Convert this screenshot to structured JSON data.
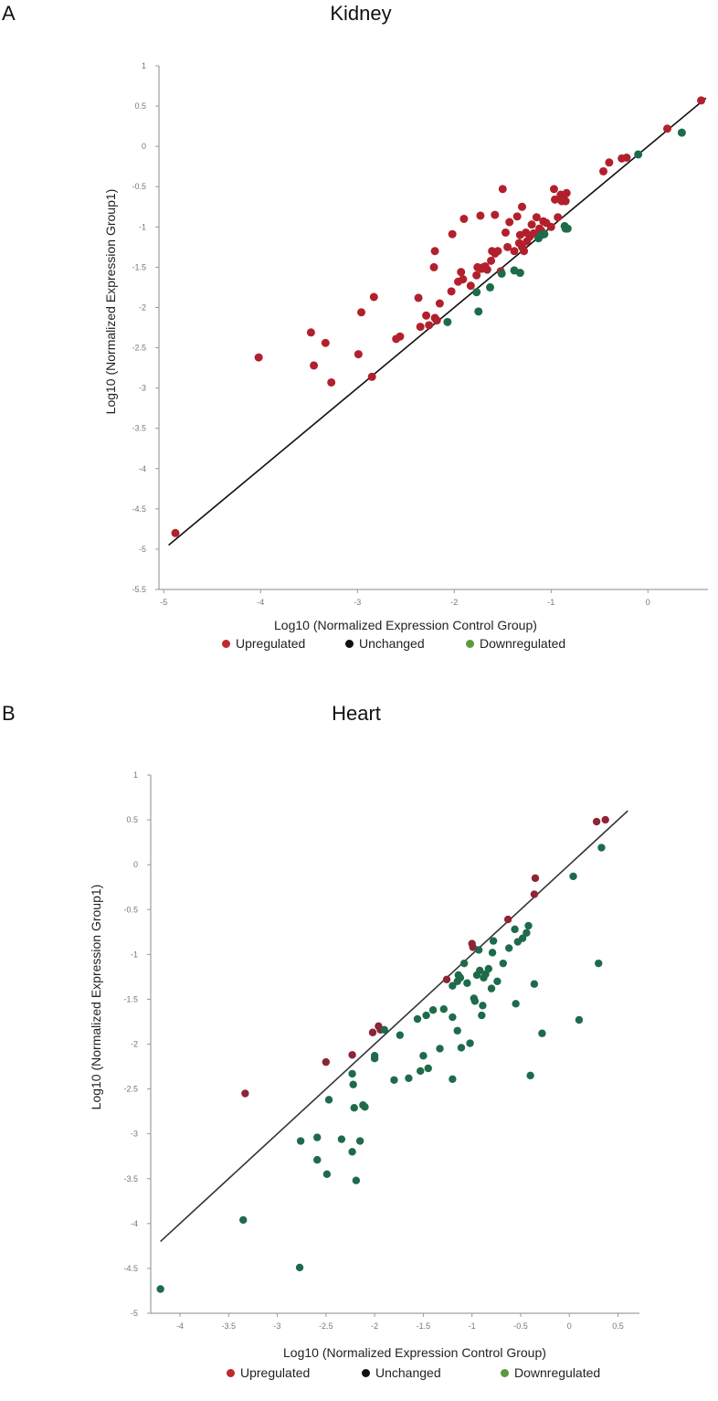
{
  "panels": [
    {
      "letter": "A",
      "title": "Kidney",
      "xlabel": "Log10 (Normalized Expression Control Group)",
      "ylabel": "Log10 (Normalized Expression Group1)"
    },
    {
      "letter": "B",
      "title": "Heart",
      "xlabel": "Log10 (Normalized Expression Control Group)",
      "ylabel": "Log10 (Normalized Expression Group1)"
    }
  ],
  "legend": [
    {
      "label": "Upregulated",
      "color": "#c0282d"
    },
    {
      "label": "Unchanged",
      "color": "#111111"
    },
    {
      "label": "Downregulated",
      "color": "#5a9a3c"
    }
  ],
  "chart_data": [
    {
      "type": "scatter",
      "title": "Kidney",
      "xlabel": "Log10 (Normalized Expression Control Group)",
      "ylabel": "Log10 (Normalized Expression Group1)",
      "xlim": [
        -5.05,
        0.62
      ],
      "ylim": [
        -5.5,
        1
      ],
      "x_ticks": [
        "-5",
        "-4",
        "-3",
        "-2",
        "-1",
        "0"
      ],
      "x_tick_values": [
        -5,
        -4,
        -3,
        -2,
        -1,
        0
      ],
      "y_ticks": [
        "1",
        "0.5",
        "0",
        "-0.5",
        "-1",
        "-1.5",
        "-2",
        "-2.5",
        "-3",
        "-3.5",
        "-4",
        "-4.5",
        "-5",
        "-5.5"
      ],
      "y_tick_values": [
        1,
        0.5,
        0,
        -0.5,
        -1,
        -1.5,
        -2,
        -2.5,
        -3,
        -3.5,
        -4,
        -4.5,
        -5,
        -5.5
      ],
      "reference_line": {
        "from": [
          -4.95,
          -4.95
        ],
        "to": [
          0.6,
          0.6
        ],
        "color": "#111111"
      },
      "series": [
        {
          "name": "Upregulated",
          "color": "#b2202c",
          "points": [
            [
              -4.88,
              -4.8
            ],
            [
              -4.02,
              -2.62
            ],
            [
              -3.48,
              -2.31
            ],
            [
              -3.45,
              -2.72
            ],
            [
              -3.33,
              -2.44
            ],
            [
              -3.27,
              -2.93
            ],
            [
              -2.99,
              -2.58
            ],
            [
              -2.96,
              -2.06
            ],
            [
              -2.85,
              -2.86
            ],
            [
              -2.83,
              -1.87
            ],
            [
              -2.6,
              -2.39
            ],
            [
              -2.56,
              -2.36
            ],
            [
              -2.37,
              -1.88
            ],
            [
              -2.35,
              -2.24
            ],
            [
              -2.29,
              -2.1
            ],
            [
              -2.26,
              -2.22
            ],
            [
              -2.21,
              -1.5
            ],
            [
              -2.2,
              -1.3
            ],
            [
              -2.2,
              -2.13
            ],
            [
              -2.18,
              -2.16
            ],
            [
              -2.15,
              -1.95
            ],
            [
              -2.03,
              -1.8
            ],
            [
              -2.02,
              -1.09
            ],
            [
              -1.96,
              -1.68
            ],
            [
              -1.93,
              -1.56
            ],
            [
              -1.91,
              -1.65
            ],
            [
              -1.9,
              -0.9
            ],
            [
              -1.83,
              -1.73
            ],
            [
              -1.77,
              -1.6
            ],
            [
              -1.76,
              -1.5
            ],
            [
              -1.73,
              -0.86
            ],
            [
              -1.72,
              -1.52
            ],
            [
              -1.7,
              -1.5
            ],
            [
              -1.68,
              -1.49
            ],
            [
              -1.66,
              -1.53
            ],
            [
              -1.62,
              -1.42
            ],
            [
              -1.61,
              -1.3
            ],
            [
              -1.58,
              -0.85
            ],
            [
              -1.58,
              -1.33
            ],
            [
              -1.55,
              -1.3
            ],
            [
              -1.52,
              -1.55
            ],
            [
              -1.5,
              -0.53
            ],
            [
              -1.47,
              -1.07
            ],
            [
              -1.45,
              -1.25
            ],
            [
              -1.43,
              -0.94
            ],
            [
              -1.38,
              -1.3
            ],
            [
              -1.35,
              -0.87
            ],
            [
              -1.33,
              -1.2
            ],
            [
              -1.32,
              -1.1
            ],
            [
              -1.3,
              -0.75
            ],
            [
              -1.3,
              -1.25
            ],
            [
              -1.28,
              -1.3
            ],
            [
              -1.26,
              -1.07
            ],
            [
              -1.25,
              -1.18
            ],
            [
              -1.22,
              -1.12
            ],
            [
              -1.2,
              -0.97
            ],
            [
              -1.18,
              -1.08
            ],
            [
              -1.15,
              -0.88
            ],
            [
              -1.12,
              -1.02
            ],
            [
              -1.1,
              -1.05
            ],
            [
              -1.08,
              -0.93
            ],
            [
              -1.05,
              -0.95
            ],
            [
              -1.0,
              -1.0
            ],
            [
              -0.97,
              -0.53
            ],
            [
              -0.96,
              -0.66
            ],
            [
              -0.93,
              -0.88
            ],
            [
              -0.9,
              -0.6
            ],
            [
              -0.89,
              -0.68
            ],
            [
              -0.87,
              -0.62
            ],
            [
              -0.85,
              -0.68
            ],
            [
              -0.84,
              -0.58
            ],
            [
              -0.46,
              -0.31
            ],
            [
              -0.4,
              -0.2
            ],
            [
              -0.27,
              -0.15
            ],
            [
              -0.22,
              -0.14
            ],
            [
              0.2,
              0.22
            ],
            [
              0.55,
              0.57
            ]
          ]
        },
        {
          "name": "Downregulated",
          "color": "#1e6b4a",
          "points": [
            [
              -2.07,
              -2.18
            ],
            [
              -1.77,
              -1.81
            ],
            [
              -1.75,
              -2.05
            ],
            [
              -1.63,
              -1.75
            ],
            [
              -1.51,
              -1.58
            ],
            [
              -1.38,
              -1.54
            ],
            [
              -1.32,
              -1.57
            ],
            [
              -1.13,
              -1.14
            ],
            [
              -1.1,
              -1.1
            ],
            [
              -1.07,
              -1.09
            ],
            [
              -0.86,
              -0.99
            ],
            [
              -0.85,
              -1.02
            ],
            [
              -0.83,
              -1.02
            ],
            [
              -0.1,
              -0.1
            ],
            [
              0.35,
              0.17
            ]
          ]
        }
      ]
    },
    {
      "type": "scatter",
      "title": "Heart",
      "xlabel": "Log10 (Normalized Expression Control Group)",
      "ylabel": "Log10 (Normalized Expression Group1)",
      "xlim": [
        -4.3,
        0.72
      ],
      "ylim": [
        -5,
        1
      ],
      "x_ticks": [
        "-4",
        "-3.5",
        "-3",
        "-2.5",
        "-2",
        "-1.5",
        "-1",
        "-0.5",
        "0",
        "0.5"
      ],
      "x_tick_values": [
        -4,
        -3.5,
        -3,
        -2.5,
        -2,
        -1.5,
        -1,
        -0.5,
        0,
        0.5
      ],
      "y_ticks": [
        "1",
        "0.5",
        "0",
        "-0.5",
        "-1",
        "-1.5",
        "-2",
        "-2.5",
        "-3",
        "-3.5",
        "-4",
        "-4.5",
        "-5"
      ],
      "y_tick_values": [
        1,
        0.5,
        0,
        -0.5,
        -1,
        -1.5,
        -2,
        -2.5,
        -3,
        -3.5,
        -4,
        -4.5,
        -5
      ],
      "reference_line": {
        "from": [
          -4.2,
          -4.2
        ],
        "to": [
          0.6,
          0.6
        ],
        "color": "#333333"
      },
      "series": [
        {
          "name": "Upregulated",
          "color": "#8e2436",
          "points": [
            [
              -3.33,
              -2.55
            ],
            [
              -2.5,
              -2.2
            ],
            [
              -2.23,
              -2.12
            ],
            [
              -2.02,
              -1.87
            ],
            [
              -1.96,
              -1.8
            ],
            [
              -1.94,
              -1.84
            ],
            [
              -1.26,
              -1.28
            ],
            [
              -1.0,
              -0.88
            ],
            [
              -0.99,
              -0.92
            ],
            [
              -0.63,
              -0.61
            ],
            [
              -0.36,
              -0.33
            ],
            [
              -0.35,
              -0.15
            ],
            [
              0.28,
              0.48
            ],
            [
              0.37,
              0.5
            ]
          ]
        },
        {
          "name": "Downregulated",
          "color": "#1e6b4a",
          "points": [
            [
              -4.2,
              -4.73
            ],
            [
              -3.35,
              -3.96
            ],
            [
              -2.77,
              -4.49
            ],
            [
              -2.76,
              -3.08
            ],
            [
              -2.59,
              -3.04
            ],
            [
              -2.59,
              -3.29
            ],
            [
              -2.49,
              -3.45
            ],
            [
              -2.47,
              -2.62
            ],
            [
              -2.34,
              -3.06
            ],
            [
              -2.23,
              -3.2
            ],
            [
              -2.23,
              -2.33
            ],
            [
              -2.22,
              -2.45
            ],
            [
              -2.21,
              -2.71
            ],
            [
              -2.19,
              -3.52
            ],
            [
              -2.15,
              -3.08
            ],
            [
              -2.12,
              -2.68
            ],
            [
              -2.1,
              -2.7
            ],
            [
              -2.0,
              -2.13
            ],
            [
              -2.0,
              -2.16
            ],
            [
              -1.9,
              -1.84
            ],
            [
              -1.8,
              -2.4
            ],
            [
              -1.74,
              -1.9
            ],
            [
              -1.65,
              -2.38
            ],
            [
              -1.56,
              -1.72
            ],
            [
              -1.53,
              -2.3
            ],
            [
              -1.5,
              -2.13
            ],
            [
              -1.47,
              -1.68
            ],
            [
              -1.45,
              -2.27
            ],
            [
              -1.4,
              -1.62
            ],
            [
              -1.33,
              -2.05
            ],
            [
              -1.29,
              -1.61
            ],
            [
              -1.2,
              -2.39
            ],
            [
              -1.2,
              -1.7
            ],
            [
              -1.2,
              -1.35
            ],
            [
              -1.15,
              -1.85
            ],
            [
              -1.15,
              -1.3
            ],
            [
              -1.14,
              -1.23
            ],
            [
              -1.12,
              -1.26
            ],
            [
              -1.11,
              -2.04
            ],
            [
              -1.08,
              -1.1
            ],
            [
              -1.05,
              -1.32
            ],
            [
              -1.02,
              -1.99
            ],
            [
              -0.98,
              -1.49
            ],
            [
              -0.97,
              -1.52
            ],
            [
              -0.95,
              -1.23
            ],
            [
              -0.93,
              -0.95
            ],
            [
              -0.92,
              -1.18
            ],
            [
              -0.9,
              -1.68
            ],
            [
              -0.89,
              -1.57
            ],
            [
              -0.88,
              -1.26
            ],
            [
              -0.86,
              -1.22
            ],
            [
              -0.83,
              -1.16
            ],
            [
              -0.8,
              -1.38
            ],
            [
              -0.79,
              -0.98
            ],
            [
              -0.78,
              -0.85
            ],
            [
              -0.74,
              -1.3
            ],
            [
              -0.68,
              -1.1
            ],
            [
              -0.62,
              -0.93
            ],
            [
              -0.56,
              -0.72
            ],
            [
              -0.55,
              -1.55
            ],
            [
              -0.53,
              -0.86
            ],
            [
              -0.48,
              -0.82
            ],
            [
              -0.44,
              -0.76
            ],
            [
              -0.42,
              -0.68
            ],
            [
              -0.4,
              -2.35
            ],
            [
              -0.36,
              -1.33
            ],
            [
              -0.28,
              -1.88
            ],
            [
              0.04,
              -0.13
            ],
            [
              0.1,
              -1.73
            ],
            [
              0.3,
              -1.1
            ],
            [
              0.33,
              0.19
            ]
          ]
        }
      ]
    }
  ]
}
